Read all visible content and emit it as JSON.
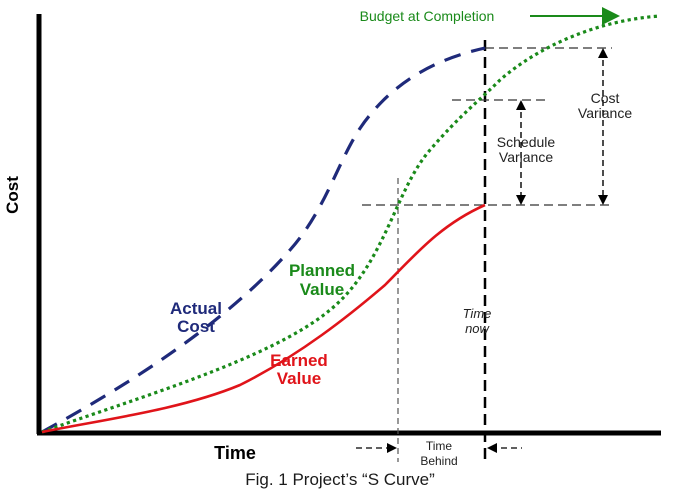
{
  "axes": {
    "y_label": "Cost",
    "x_label": "Time"
  },
  "labels": {
    "budget_at_completion": "Budget at Completion",
    "cost_variance": [
      "Cost",
      "Variance"
    ],
    "schedule_variance": [
      "Schedule",
      "Variance"
    ],
    "planned_value": [
      "Planned",
      "Value"
    ],
    "actual_cost": [
      "Actual",
      "Cost"
    ],
    "earned_value": [
      "Earned",
      "Value"
    ],
    "time_now": [
      "Time",
      "now"
    ],
    "time_behind": [
      "Time",
      "Behind"
    ]
  },
  "caption": "Fig. 1 Project’s “S Curve”",
  "colors": {
    "actual_cost": "#1f2a7a",
    "planned_value": "#1a8a1a",
    "earned_value": "#e0141a",
    "axis": "#000000",
    "guide": "#222222"
  }
}
